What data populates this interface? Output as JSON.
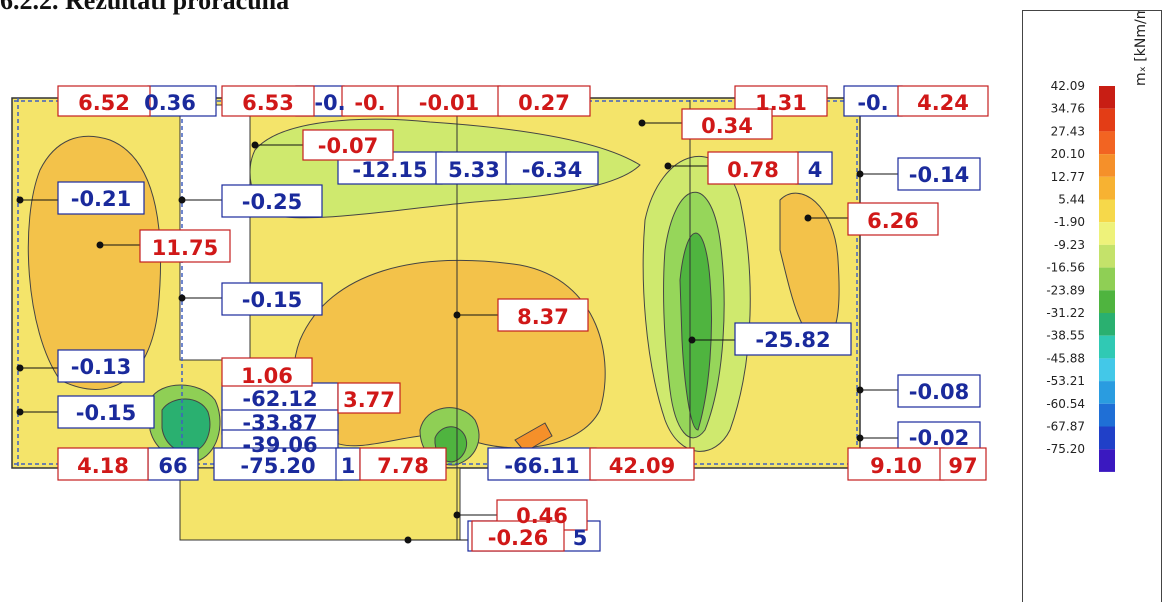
{
  "title": "6.2.2. Rezultati proračuna",
  "legend": {
    "unit": "mₓ [kNm/m]",
    "values": [
      "42.09",
      "34.76",
      "27.43",
      "20.10",
      "12.77",
      "5.44",
      "-1.90",
      "-9.23",
      "-16.56",
      "-23.89",
      "-31.22",
      "-38.55",
      "-45.88",
      "-53.21",
      "-60.54",
      "-67.87",
      "-75.20"
    ],
    "colors": [
      "#c81e14",
      "#e33d16",
      "#f26422",
      "#f5902a",
      "#f7b232",
      "#f6d84a",
      "#eef27a",
      "#c4e26a",
      "#8fcf55",
      "#4fb43f",
      "#2ab070",
      "#30c9b4",
      "#43c8e8",
      "#2a9ce0",
      "#1f6fd6",
      "#2040c8",
      "#3a18c0"
    ]
  },
  "labels": {
    "positive": [
      "6.52",
      "6.53",
      "-0.07",
      "0.27",
      "1.31",
      "4.24",
      "0.34",
      "0.78",
      "6.26",
      "11.75",
      "8.37",
      "1.06",
      "3.77",
      "4.18",
      "7.78",
      "42.09",
      "9.10",
      "0.46",
      "-0.26",
      "-0.",
      "-0.01",
      "97"
    ],
    "negative": [
      "0.36",
      "-0.",
      "-0.",
      "-12.15",
      "5.33",
      "-6.34",
      "4",
      "-0.14",
      "-0.21",
      "-0.25",
      "-0.15",
      "-0.13",
      "-0.15",
      "-62.12",
      "-33.87",
      "-39.06",
      "-75.20",
      "66",
      "-66.11",
      "-25.82",
      "-0.08",
      "-0.02",
      "1",
      "5"
    ]
  }
}
